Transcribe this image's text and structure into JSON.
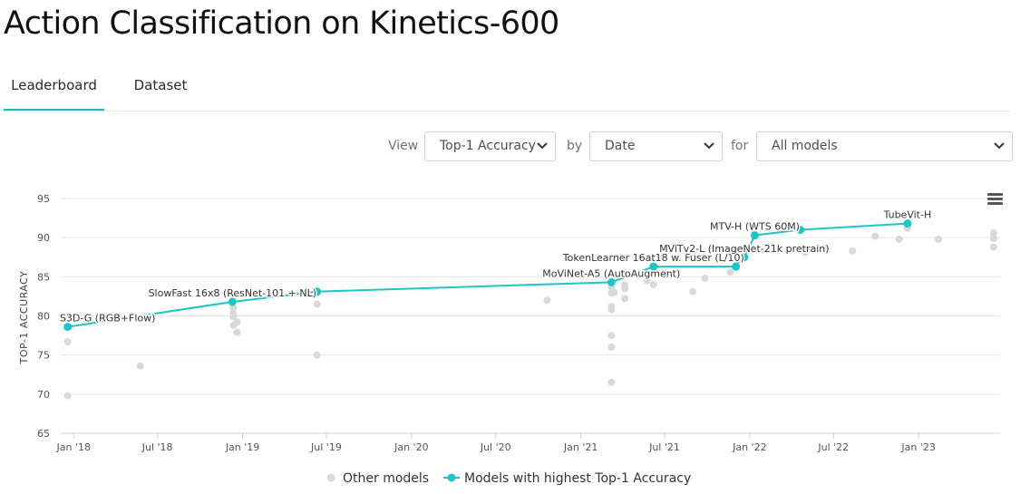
{
  "page": {
    "title": "Action Classification on Kinetics-600"
  },
  "tabs": [
    {
      "label": "Leaderboard",
      "active": true
    },
    {
      "label": "Dataset",
      "active": false
    }
  ],
  "controls": {
    "view_label": "View",
    "view_value": "Top-1 Accuracy",
    "by_label": "by",
    "by_value": "Date",
    "for_label": "for",
    "for_value": "All models"
  },
  "colors": {
    "accent": "#21c4c4",
    "other": "#d9d9d9",
    "tab_underline": "#21b8b8"
  },
  "chart_data": {
    "type": "scatter",
    "title": "",
    "xlabel": "",
    "ylabel": "TOP-1 ACCURACY",
    "ylim": [
      65,
      95
    ],
    "yticks": [
      65,
      70,
      75,
      80,
      85,
      90,
      95
    ],
    "xlim": [
      "2017-12-04",
      "2023-06-26"
    ],
    "xticks": [
      {
        "label": "Jan '18",
        "date": "2018-01-01"
      },
      {
        "label": "Jul '18",
        "date": "2018-07-01"
      },
      {
        "label": "Jan '19",
        "date": "2019-01-01"
      },
      {
        "label": "Jul '19",
        "date": "2019-07-01"
      },
      {
        "label": "Jan '20",
        "date": "2020-01-01"
      },
      {
        "label": "Jul '20",
        "date": "2020-07-01"
      },
      {
        "label": "Jan '21",
        "date": "2021-01-01"
      },
      {
        "label": "Jul '21",
        "date": "2021-07-01"
      },
      {
        "label": "Jan '22",
        "date": "2022-01-01"
      },
      {
        "label": "Jul '22",
        "date": "2022-07-01"
      },
      {
        "label": "Jan '23",
        "date": "2023-01-01"
      }
    ],
    "grid": "horizontal",
    "legend_position": "bottom",
    "series": [
      {
        "name": "Models with highest Top-1 Accuracy",
        "color": "#21c4c4",
        "points": [
          {
            "date": "2017-12-19",
            "value": 78.6,
            "label": "S3D-G (RGB+Flow)"
          },
          {
            "date": "2018-12-10",
            "value": 81.8,
            "label": "SlowFast 16x8 (ResNet-101 + NL)"
          },
          {
            "date": "2019-06-11",
            "value": 83.1,
            "label": ""
          },
          {
            "date": "2021-03-08",
            "value": 84.3,
            "label": "MoViNet-A5 (AutoAugment)"
          },
          {
            "date": "2021-06-07",
            "value": 86.3,
            "label": "TokenLearner 16at18 w. Fuser (L/10)"
          },
          {
            "date": "2021-12-02",
            "value": 86.3,
            "label": ""
          },
          {
            "date": "2021-12-20",
            "value": 87.5,
            "label": "MViTv2-L (ImageNet-21k pretrain)"
          },
          {
            "date": "2022-01-12",
            "value": 90.3,
            "label": "MTV-H (WTS 60M)"
          },
          {
            "date": "2022-04-20",
            "value": 91.0,
            "label": ""
          },
          {
            "date": "2022-12-08",
            "value": 91.8,
            "label": "TubeVit-H"
          }
        ]
      },
      {
        "name": "Other models",
        "color": "#d9d9d9",
        "points": [
          {
            "date": "2017-12-19",
            "value": 76.7
          },
          {
            "date": "2017-12-19",
            "value": 69.8
          },
          {
            "date": "2018-05-25",
            "value": 73.6
          },
          {
            "date": "2018-12-12",
            "value": 81.0
          },
          {
            "date": "2018-12-12",
            "value": 80.3
          },
          {
            "date": "2018-12-12",
            "value": 79.9
          },
          {
            "date": "2018-12-12",
            "value": 78.8
          },
          {
            "date": "2018-12-20",
            "value": 79.2
          },
          {
            "date": "2018-12-20",
            "value": 77.9
          },
          {
            "date": "2019-06-11",
            "value": 81.5
          },
          {
            "date": "2019-06-11",
            "value": 75.0
          },
          {
            "date": "2020-10-20",
            "value": 82.0
          },
          {
            "date": "2021-03-08",
            "value": 83.7
          },
          {
            "date": "2021-03-08",
            "value": 82.9
          },
          {
            "date": "2021-03-08",
            "value": 81.2
          },
          {
            "date": "2021-03-08",
            "value": 80.8
          },
          {
            "date": "2021-03-08",
            "value": 77.5
          },
          {
            "date": "2021-03-08",
            "value": 76.0
          },
          {
            "date": "2021-03-08",
            "value": 71.5
          },
          {
            "date": "2021-03-14",
            "value": 83.0
          },
          {
            "date": "2021-04-06",
            "value": 83.9
          },
          {
            "date": "2021-04-06",
            "value": 83.5
          },
          {
            "date": "2021-04-06",
            "value": 82.2
          },
          {
            "date": "2021-05-24",
            "value": 84.5
          },
          {
            "date": "2021-06-07",
            "value": 84.0
          },
          {
            "date": "2021-08-31",
            "value": 83.1
          },
          {
            "date": "2021-09-26",
            "value": 84.8
          },
          {
            "date": "2021-11-20",
            "value": 85.6
          },
          {
            "date": "2021-12-02",
            "value": 87.0
          },
          {
            "date": "2022-05-01",
            "value": 88.1
          },
          {
            "date": "2022-06-10",
            "value": 88.6
          },
          {
            "date": "2022-08-11",
            "value": 88.3
          },
          {
            "date": "2022-09-29",
            "value": 90.2
          },
          {
            "date": "2022-11-20",
            "value": 89.8
          },
          {
            "date": "2022-12-08",
            "value": 91.2
          },
          {
            "date": "2023-02-13",
            "value": 89.8
          },
          {
            "date": "2023-06-12",
            "value": 90.6
          },
          {
            "date": "2023-06-12",
            "value": 89.9
          },
          {
            "date": "2023-06-12",
            "value": 88.8
          }
        ]
      }
    ]
  }
}
